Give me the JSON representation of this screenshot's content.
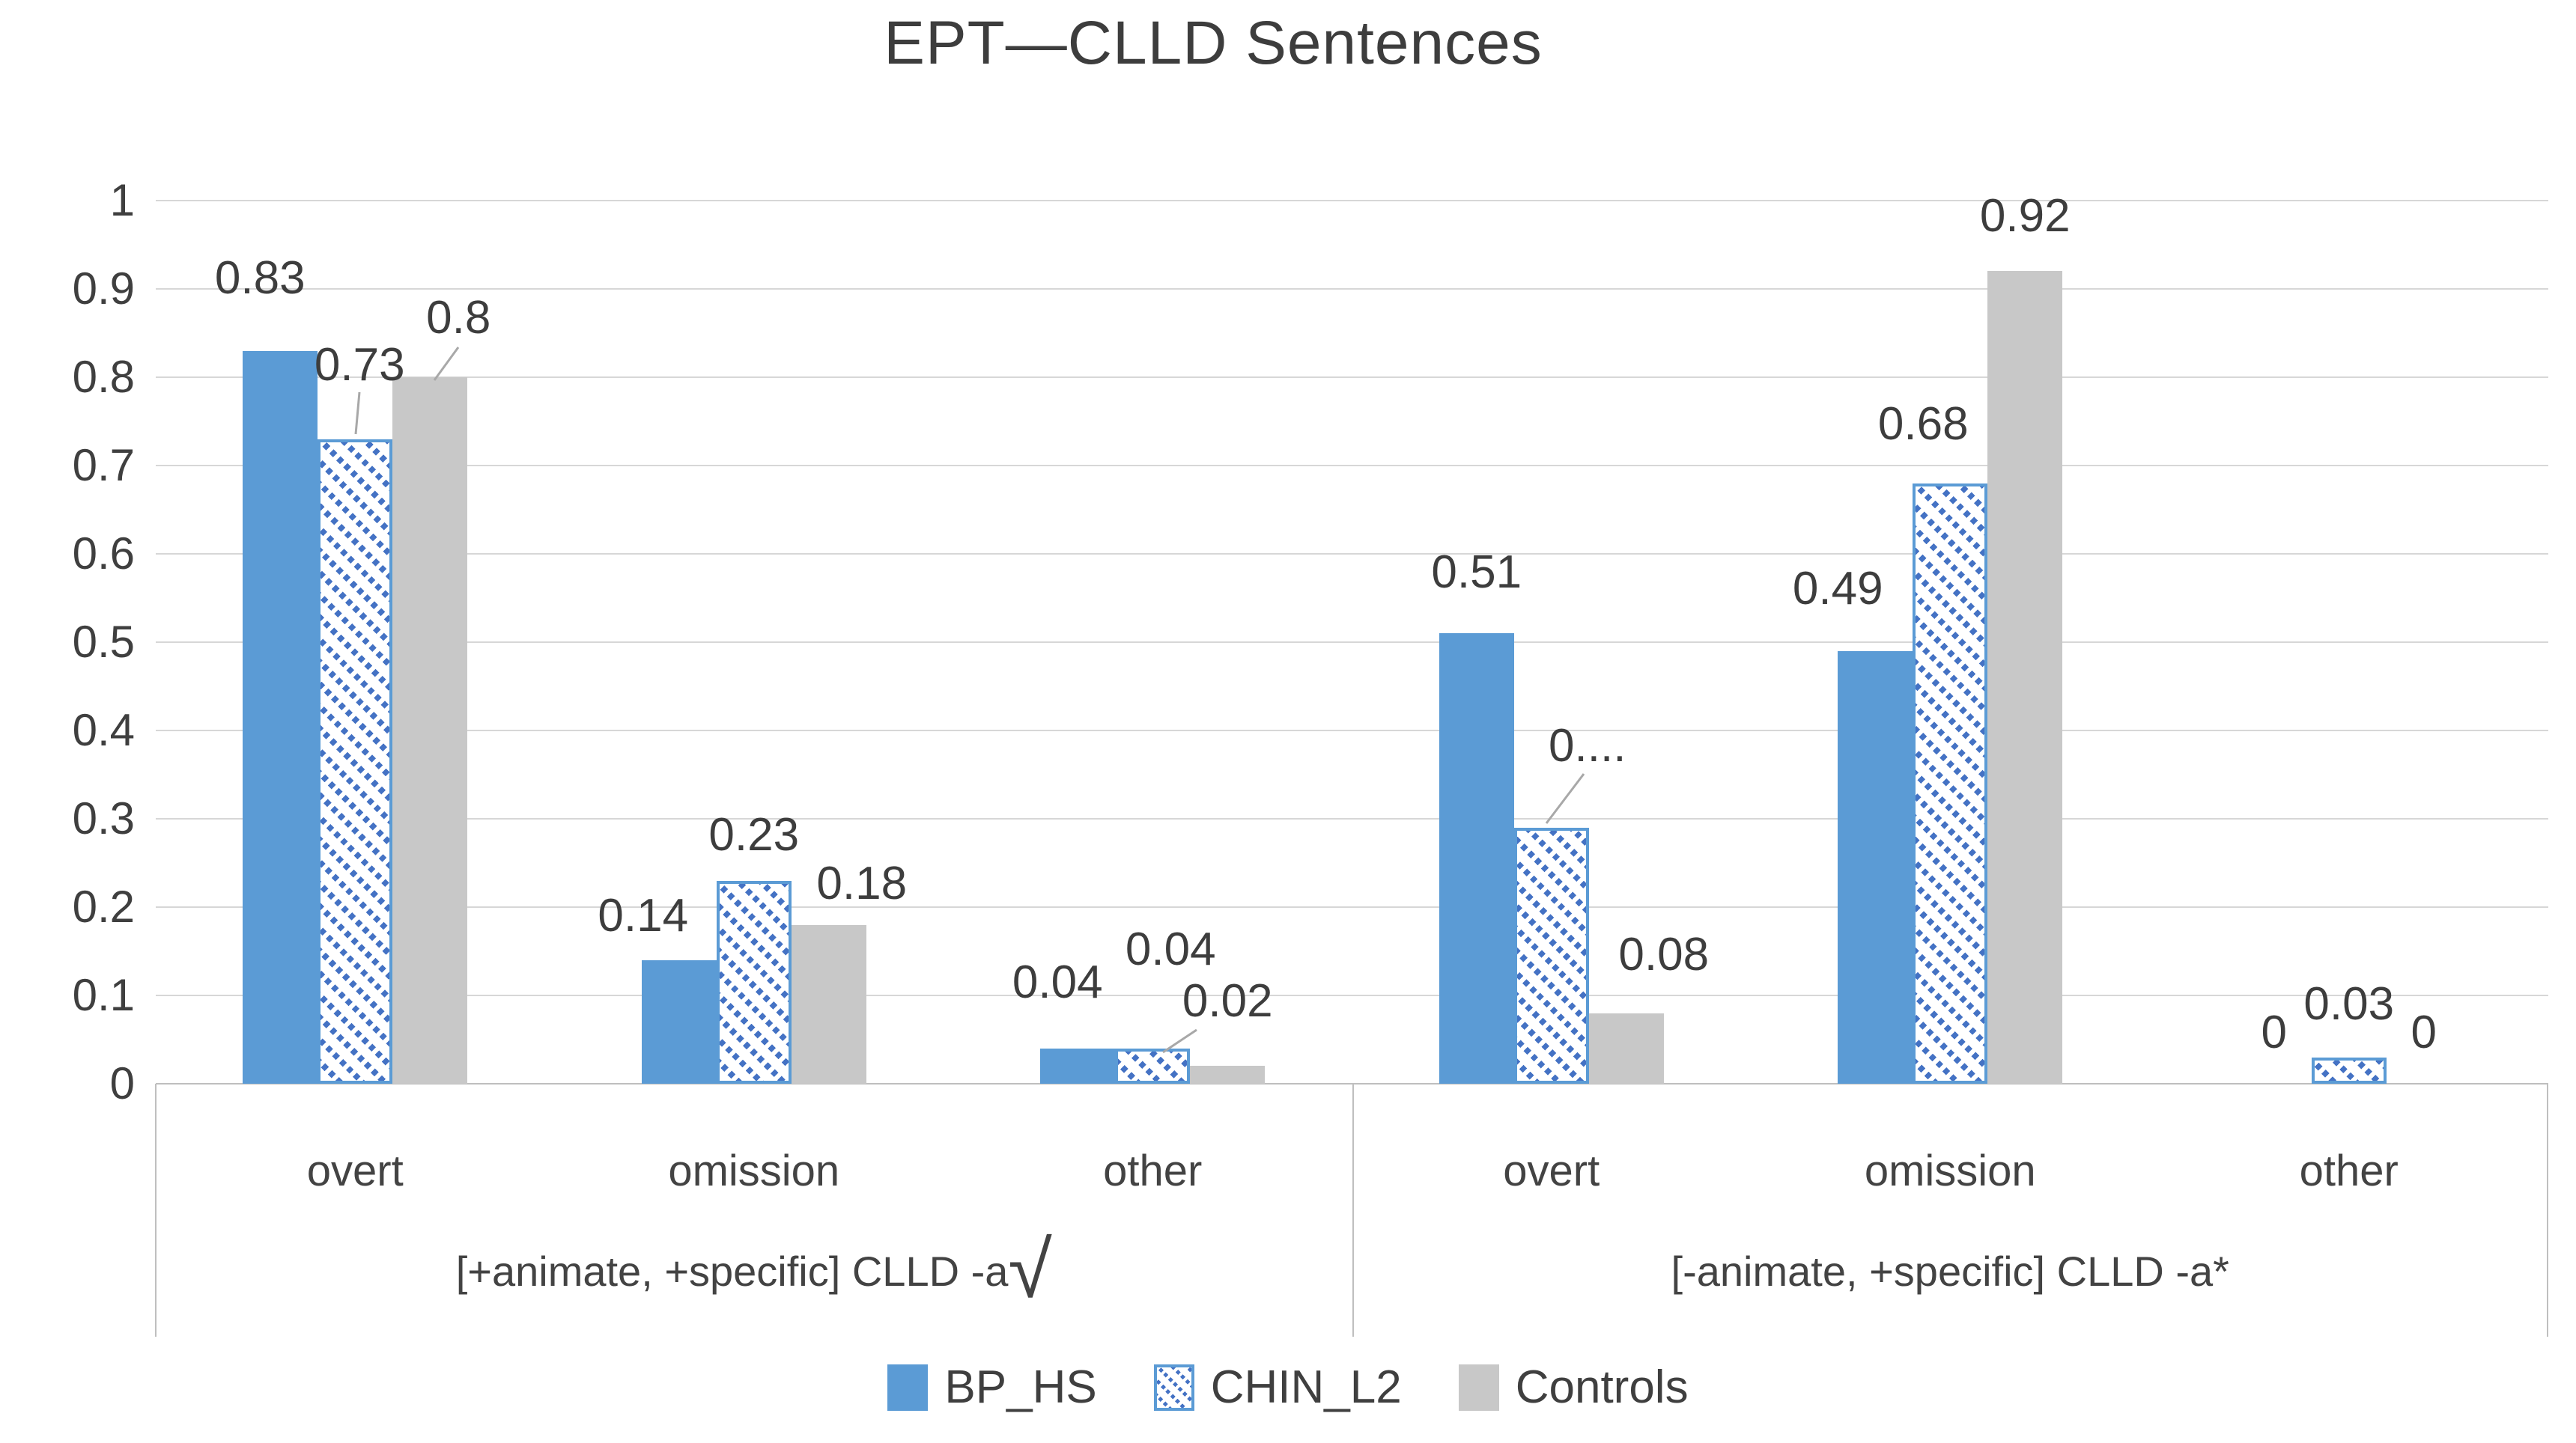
{
  "chart_data": {
    "type": "bar",
    "title": "EPT—CLLD Sentences",
    "y_axis": {
      "min": 0,
      "max": 1,
      "step": 0.1,
      "tick_labels": [
        "0",
        "0.1",
        "0.2",
        "0.3",
        "0.4",
        "0.5",
        "0.6",
        "0.7",
        "0.8",
        "0.9",
        "1"
      ],
      "gridlines": true
    },
    "group_axis": [
      {
        "label": "[+animate, +specific] CLLD -a",
        "suffix": "√",
        "categories": [
          "overt",
          "omission",
          "other"
        ]
      },
      {
        "label": "[-animate, +specific] CLLD -a",
        "suffix": "*",
        "categories": [
          "overt",
          "omission",
          "other"
        ]
      }
    ],
    "series": [
      {
        "name": "BP_HS",
        "fill": "solid",
        "color": "#5B9BD5",
        "values": [
          0.83,
          0.14,
          0.04,
          0.51,
          0.49,
          0
        ],
        "labels": [
          "0.83",
          "0.14",
          "0.04",
          "0.51",
          "0.49",
          "0"
        ],
        "label_offsets": [
          [
            -27,
            -54
          ],
          [
            -48,
            -16
          ],
          [
            -27,
            -45
          ],
          [
            0,
            -38
          ],
          [
            -50,
            -40
          ],
          [
            0,
            -25
          ]
        ]
      },
      {
        "name": "CHIN_L2",
        "fill": "hatched",
        "color": "#5B9BD5",
        "pattern_color": "#4472C4",
        "values": [
          0.73,
          0.23,
          0.04,
          0.29,
          0.68,
          0.03
        ],
        "labels": [
          "0.73",
          "0.23",
          "0.04",
          "0....",
          "0.68",
          "0.03"
        ],
        "label_offsets": [
          [
            6,
            -56
          ],
          [
            0,
            -18
          ],
          [
            24,
            -89
          ],
          [
            48,
            -66
          ],
          [
            -36,
            -36
          ],
          [
            0,
            -28
          ]
        ]
      },
      {
        "name": "Controls",
        "fill": "solid",
        "color": "#C8C8C8",
        "values": [
          0.8,
          0.18,
          0.02,
          0.08,
          0.92,
          0
        ],
        "labels": [
          "0.8",
          "0.18",
          "0.02",
          "0.08",
          "0.92",
          "0"
        ],
        "label_offsets": [
          [
            38,
            -36
          ],
          [
            44,
            -12
          ],
          [
            0,
            -43
          ],
          [
            50,
            -35
          ],
          [
            0,
            -30
          ],
          [
            0,
            -25
          ]
        ]
      }
    ],
    "legend": {
      "position": "bottom",
      "items": [
        "BP_HS",
        "CHIN_L2",
        "Controls"
      ]
    },
    "leader_lines": [
      [
        480,
        524,
        475,
        580
      ],
      [
        612,
        464,
        580,
        508
      ],
      [
        1598,
        1376,
        1553,
        1406
      ],
      [
        2115,
        1034,
        2065,
        1100
      ]
    ],
    "colors": {
      "grid": "#D7D7D7",
      "axis": "#BFBFBF",
      "leader": "#A8A8A8",
      "text": "#434343",
      "data_label": "#3D3D3D"
    }
  }
}
